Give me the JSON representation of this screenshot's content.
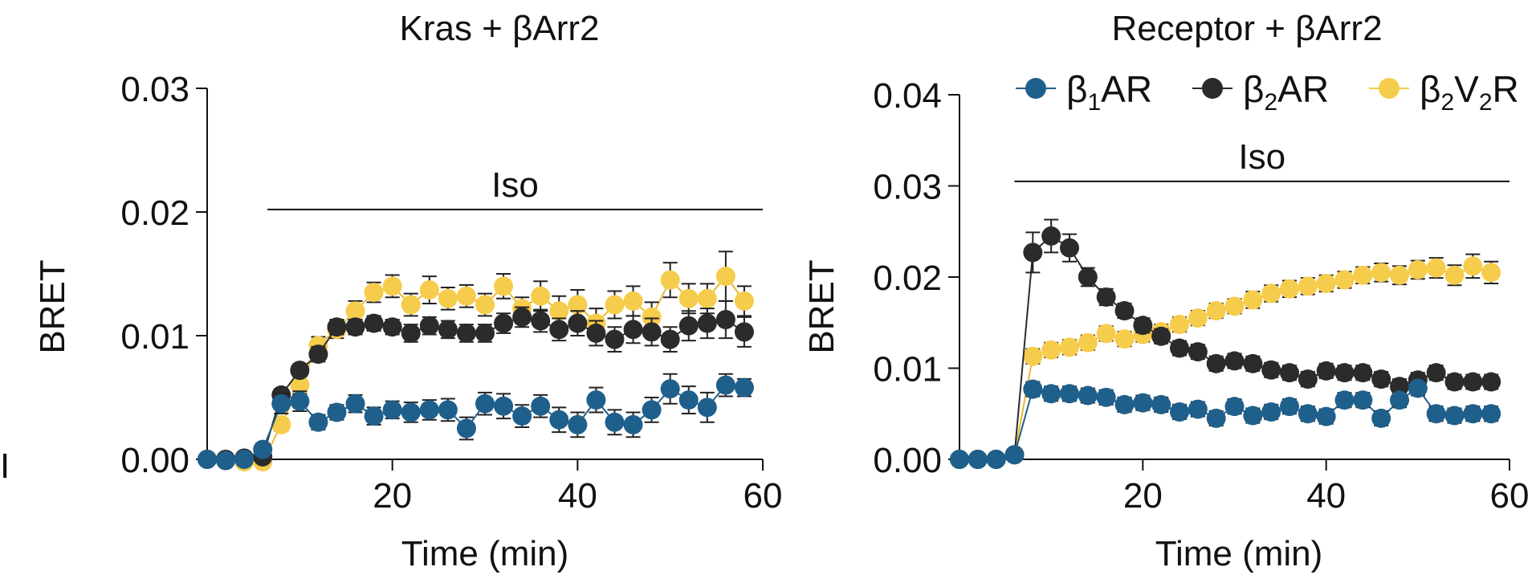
{
  "stray_mark": "I",
  "legend": {
    "items": [
      {
        "base": "β",
        "sub": "1",
        "rest": "AR"
      },
      {
        "base": "β",
        "sub": "2",
        "rest": "AR"
      },
      {
        "base": "β",
        "sub": "2",
        "rest": "V",
        "sub2": "2",
        "rest2": "R"
      }
    ]
  },
  "chart_data": [
    {
      "type": "scatter",
      "title": "Kras + βArr2",
      "xlabel": "Time (min)",
      "ylabel": "BRET",
      "xlim": [
        0,
        60
      ],
      "ylim": [
        0,
        0.03
      ],
      "xticks": [
        20,
        40,
        60
      ],
      "yticks": [
        0,
        0.01,
        0.02,
        0.03
      ],
      "xtick_labels": [
        "20",
        "40",
        "60"
      ],
      "ytick_labels": [
        "0.00",
        "0.01",
        "0.02",
        "0.03"
      ],
      "annotation": {
        "text": "Iso",
        "x_start": 6.5,
        "x_end": 60,
        "y": 0.0202
      },
      "series": [
        {
          "name": "β2V2R",
          "color": "#F6CC4C",
          "x": [
            0,
            2,
            4,
            6,
            8,
            10,
            12,
            14,
            16,
            18,
            20,
            22,
            24,
            26,
            28,
            30,
            32,
            34,
            36,
            38,
            40,
            42,
            44,
            46,
            48,
            50,
            52,
            54,
            56,
            58
          ],
          "y": [
            0,
            -0.0001,
            -0.0002,
            -0.0002,
            0.0028,
            0.006,
            0.0092,
            0.0105,
            0.012,
            0.0135,
            0.014,
            0.0125,
            0.0137,
            0.013,
            0.0132,
            0.0125,
            0.014,
            0.0122,
            0.0132,
            0.012,
            0.0125,
            0.011,
            0.0125,
            0.0128,
            0.0115,
            0.0145,
            0.013,
            0.013,
            0.0148,
            0.0128
          ],
          "err": [
            0,
            0,
            0,
            0,
            0.0005,
            0.0007,
            0.0007,
            0.0007,
            0.0008,
            0.0008,
            0.0009,
            0.0009,
            0.0011,
            0.0009,
            0.0009,
            0.0009,
            0.001,
            0.0009,
            0.0012,
            0.0012,
            0.0012,
            0.0012,
            0.0011,
            0.0012,
            0.0012,
            0.0014,
            0.0012,
            0.0012,
            0.002,
            0.0012
          ]
        },
        {
          "name": "β2AR",
          "color": "#2B2B2B",
          "x": [
            0,
            2,
            4,
            6,
            8,
            10,
            12,
            14,
            16,
            18,
            20,
            22,
            24,
            26,
            28,
            30,
            32,
            34,
            36,
            38,
            40,
            42,
            44,
            46,
            48,
            50,
            52,
            54,
            56,
            58
          ],
          "y": [
            0,
            0,
            0.0001,
            0.0002,
            0.0052,
            0.0072,
            0.0085,
            0.0107,
            0.0107,
            0.011,
            0.0107,
            0.0102,
            0.0108,
            0.0105,
            0.0102,
            0.0102,
            0.011,
            0.0115,
            0.0112,
            0.0105,
            0.011,
            0.0102,
            0.0097,
            0.0105,
            0.0103,
            0.0097,
            0.0108,
            0.011,
            0.0113,
            0.0103
          ],
          "err": [
            0,
            0,
            0,
            0,
            0.0005,
            0.0005,
            0.0006,
            0.0006,
            0.0006,
            0.0006,
            0.0006,
            0.0007,
            0.0007,
            0.0007,
            0.0007,
            0.0007,
            0.0008,
            0.0008,
            0.0009,
            0.0009,
            0.001,
            0.001,
            0.001,
            0.0011,
            0.0011,
            0.001,
            0.0012,
            0.0012,
            0.0015,
            0.0012
          ]
        },
        {
          "name": "β1AR",
          "color": "#1F5F8B",
          "x": [
            0,
            2,
            4,
            6,
            8,
            10,
            12,
            14,
            16,
            18,
            20,
            22,
            24,
            26,
            28,
            30,
            32,
            34,
            36,
            38,
            40,
            42,
            44,
            46,
            48,
            50,
            52,
            54,
            56,
            58
          ],
          "y": [
            0,
            -0.0001,
            0,
            0.0008,
            0.0045,
            0.0047,
            0.003,
            0.0038,
            0.0045,
            0.0035,
            0.004,
            0.0038,
            0.004,
            0.004,
            0.0025,
            0.0045,
            0.0043,
            0.0035,
            0.0043,
            0.0032,
            0.0028,
            0.0048,
            0.003,
            0.0028,
            0.004,
            0.0057,
            0.0048,
            0.0042,
            0.006,
            0.0058
          ],
          "err": [
            0,
            0,
            0,
            0.0005,
            0.0008,
            0.0008,
            0.0006,
            0.0006,
            0.0007,
            0.0007,
            0.0007,
            0.0008,
            0.0008,
            0.0009,
            0.0009,
            0.0009,
            0.001,
            0.0009,
            0.0009,
            0.001,
            0.001,
            0.001,
            0.001,
            0.001,
            0.001,
            0.0012,
            0.0011,
            0.0012,
            0.0009,
            0.0007
          ]
        }
      ]
    },
    {
      "type": "scatter",
      "title": "Receptor + βArr2",
      "xlabel": "Time (min)",
      "ylabel": "BRET",
      "xlim": [
        0,
        60
      ],
      "ylim": [
        0,
        0.04
      ],
      "xticks": [
        20,
        40,
        60
      ],
      "yticks": [
        0,
        0.01,
        0.02,
        0.03,
        0.04
      ],
      "xtick_labels": [
        "20",
        "40",
        "60"
      ],
      "ytick_labels": [
        "0.00",
        "0.01",
        "0.02",
        "0.03",
        "0.04"
      ],
      "annotation": {
        "text": "Iso",
        "x_start": 6,
        "x_end": 60,
        "y": 0.0305
      },
      "series": [
        {
          "name": "β2V2R",
          "color": "#F6CC4C",
          "x": [
            0,
            2,
            4,
            6,
            8,
            10,
            12,
            14,
            16,
            18,
            20,
            22,
            24,
            26,
            28,
            30,
            32,
            34,
            36,
            38,
            40,
            42,
            44,
            46,
            48,
            50,
            52,
            54,
            56,
            58
          ],
          "y": [
            0,
            0,
            0,
            0.0005,
            0.0113,
            0.012,
            0.0123,
            0.0128,
            0.0138,
            0.0132,
            0.0137,
            0.014,
            0.0148,
            0.0155,
            0.0163,
            0.0168,
            0.0175,
            0.0182,
            0.0187,
            0.019,
            0.0193,
            0.0197,
            0.0202,
            0.0205,
            0.0202,
            0.0208,
            0.021,
            0.0202,
            0.0212,
            0.0205
          ],
          "err": [
            0,
            0,
            0,
            0,
            0.0008,
            0.0008,
            0.0008,
            0.0008,
            0.0008,
            0.0008,
            0.0008,
            0.0008,
            0.0008,
            0.0008,
            0.0008,
            0.0008,
            0.0009,
            0.0009,
            0.0009,
            0.0009,
            0.0009,
            0.0009,
            0.0009,
            0.001,
            0.001,
            0.001,
            0.0011,
            0.0011,
            0.0013,
            0.0012
          ]
        },
        {
          "name": "β2AR",
          "color": "#2B2B2B",
          "x": [
            0,
            2,
            4,
            6,
            8,
            10,
            12,
            14,
            16,
            18,
            20,
            22,
            24,
            26,
            28,
            30,
            32,
            34,
            36,
            38,
            40,
            42,
            44,
            46,
            48,
            50,
            52,
            54,
            56,
            58
          ],
          "y": [
            0,
            0,
            0,
            0.0005,
            0.0227,
            0.0245,
            0.0232,
            0.02,
            0.0178,
            0.0163,
            0.0147,
            0.0135,
            0.0122,
            0.0118,
            0.0105,
            0.0108,
            0.0105,
            0.0098,
            0.0095,
            0.0088,
            0.0097,
            0.0095,
            0.0095,
            0.0088,
            0.008,
            0.0087,
            0.0095,
            0.0085,
            0.0085,
            0.0085
          ],
          "err": [
            0,
            0,
            0,
            0,
            0.0022,
            0.0018,
            0.0015,
            0.001,
            0.0009,
            0.0008,
            0.0008,
            0.0008,
            0.0008,
            0.0008,
            0.0008,
            0.0008,
            0.0008,
            0.0008,
            0.0008,
            0.0008,
            0.0008,
            0.0008,
            0.0008,
            0.0008,
            0.0008,
            0.0008,
            0.0008,
            0.0008,
            0.0008,
            0.0008
          ]
        },
        {
          "name": "β1AR",
          "color": "#1F5F8B",
          "x": [
            0,
            2,
            4,
            6,
            8,
            10,
            12,
            14,
            16,
            18,
            20,
            22,
            24,
            26,
            28,
            30,
            32,
            34,
            36,
            38,
            40,
            42,
            44,
            46,
            48,
            50,
            52,
            54,
            56,
            58
          ],
          "y": [
            0,
            0,
            0,
            0.0005,
            0.0077,
            0.0072,
            0.0072,
            0.007,
            0.0068,
            0.006,
            0.0062,
            0.006,
            0.0052,
            0.0055,
            0.0045,
            0.0058,
            0.0048,
            0.0052,
            0.0058,
            0.005,
            0.0047,
            0.0065,
            0.0065,
            0.0045,
            0.0065,
            0.0078,
            0.005,
            0.0048,
            0.005,
            0.005
          ],
          "err": [
            0,
            0,
            0,
            0,
            0.0008,
            0.0008,
            0.0008,
            0.0008,
            0.0008,
            0.0008,
            0.0008,
            0.0008,
            0.0008,
            0.0008,
            0.0008,
            0.0008,
            0.0008,
            0.0008,
            0.0008,
            0.0008,
            0.0008,
            0.0008,
            0.0008,
            0.0008,
            0.0008,
            0.0008,
            0.0008,
            0.0008,
            0.0008,
            0.0008
          ]
        }
      ]
    }
  ]
}
